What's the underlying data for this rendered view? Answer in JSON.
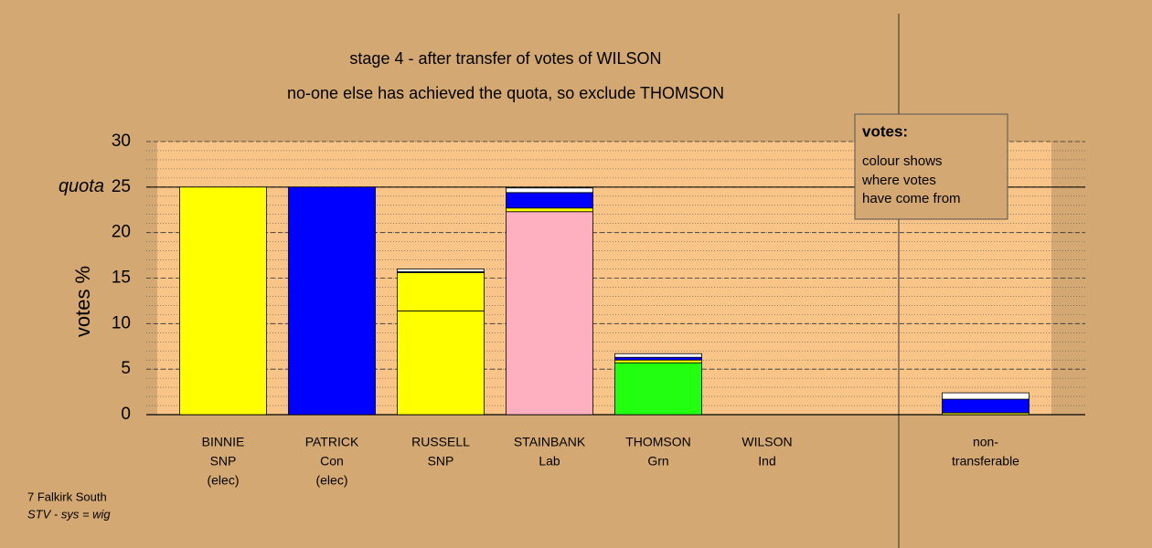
{
  "chart_data": {
    "type": "bar",
    "title": "stage 4 - after transfer of votes of WILSON",
    "subtitle": "no-one else has achieved the quota, so exclude THOMSON",
    "y_label": "votes %",
    "quota": {
      "value": 25,
      "label": "quota"
    },
    "ylim": [
      0,
      30
    ],
    "yticks": [
      0,
      5,
      10,
      15,
      20,
      25,
      30
    ],
    "minor_grid_step": 1,
    "grid": true,
    "bars": [
      {
        "label": [
          "BINNIE",
          "SNP",
          "(elec)"
        ],
        "segments": [
          {
            "value": 25,
            "color": "#ffff00"
          }
        ]
      },
      {
        "label": [
          "PATRICK",
          "Con",
          "(elec)"
        ],
        "segments": [
          {
            "value": 25,
            "color": "#0000ff"
          }
        ]
      },
      {
        "label": [
          "RUSSELL",
          "SNP"
        ],
        "segments": [
          {
            "value": 11.4,
            "color": "#ffff00"
          },
          {
            "value": 4.2,
            "color": "#ffff00"
          },
          {
            "value": 0.1,
            "color": "#0000ff"
          },
          {
            "value": 0.3,
            "color": "#ffffff"
          }
        ]
      },
      {
        "label": [
          "STAINBANK",
          "Lab"
        ],
        "segments": [
          {
            "value": 22.3,
            "color": "#ffb0c0"
          },
          {
            "value": 0.4,
            "color": "#ffff00"
          },
          {
            "value": 1.7,
            "color": "#0000ff"
          },
          {
            "value": 0.5,
            "color": "#ffffff"
          }
        ]
      },
      {
        "label": [
          "THOMSON",
          "Grn"
        ],
        "segments": [
          {
            "value": 5.7,
            "color": "#22ff11"
          },
          {
            "value": 0.3,
            "color": "#ffff00"
          },
          {
            "value": 0.3,
            "color": "#0000ff"
          },
          {
            "value": 0.4,
            "color": "#ffffff"
          }
        ]
      },
      {
        "label": [
          "WILSON",
          "Ind"
        ],
        "segments": []
      },
      {
        "label": [
          "non-",
          "transferable"
        ],
        "segments": [
          {
            "value": 0.2,
            "color": "#ffff00"
          },
          {
            "value": 1.5,
            "color": "#0000ff"
          },
          {
            "value": 0.7,
            "color": "#ffffff"
          }
        ]
      }
    ],
    "legend_title": "votes:",
    "legend_text": [
      "colour shows",
      "where votes",
      "have come from"
    ],
    "footnote": [
      "7 Falkirk South",
      "STV - sys = wig"
    ]
  }
}
